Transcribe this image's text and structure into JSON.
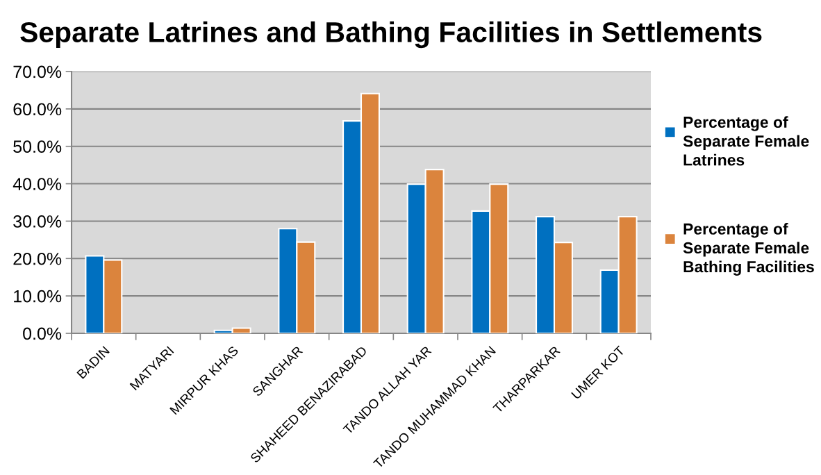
{
  "chart_data": {
    "type": "bar",
    "title": "Separate Latrines and Bathing Facilities in Settlements",
    "categories": [
      "BADIN",
      "MATYARI",
      "MIRPUR KHAS",
      "SANGHAR",
      "SHAHEED BENAZIRABAD",
      "TANDO ALLAH YAR",
      "TANDO MUHAMMAD KHAN",
      "THARPARKAR",
      "UMER KOT"
    ],
    "series": [
      {
        "name": "Percentage of Separate Female Latrines",
        "color": "#0070c0",
        "values": [
          20.7,
          null,
          0.8,
          28.0,
          56.8,
          39.9,
          32.7,
          31.2,
          16.9
        ]
      },
      {
        "name": "Percentage of Separate Female Bathing Facilities",
        "color": "#db843d",
        "values": [
          19.6,
          null,
          1.4,
          24.4,
          64.1,
          43.8,
          39.9,
          24.3,
          31.2
        ]
      }
    ],
    "ylim": [
      0,
      70
    ],
    "yticks": [
      {
        "value": 0,
        "label": "0.0%"
      },
      {
        "value": 10,
        "label": "10.0%"
      },
      {
        "value": 20,
        "label": "20.0%"
      },
      {
        "value": 30,
        "label": "30.0%"
      },
      {
        "value": 40,
        "label": "40.0%"
      },
      {
        "value": 50,
        "label": "50.0%"
      },
      {
        "value": 60,
        "label": "60.0%"
      },
      {
        "value": 70,
        "label": "70.0%"
      }
    ],
    "grid": "y",
    "legend": "right"
  }
}
